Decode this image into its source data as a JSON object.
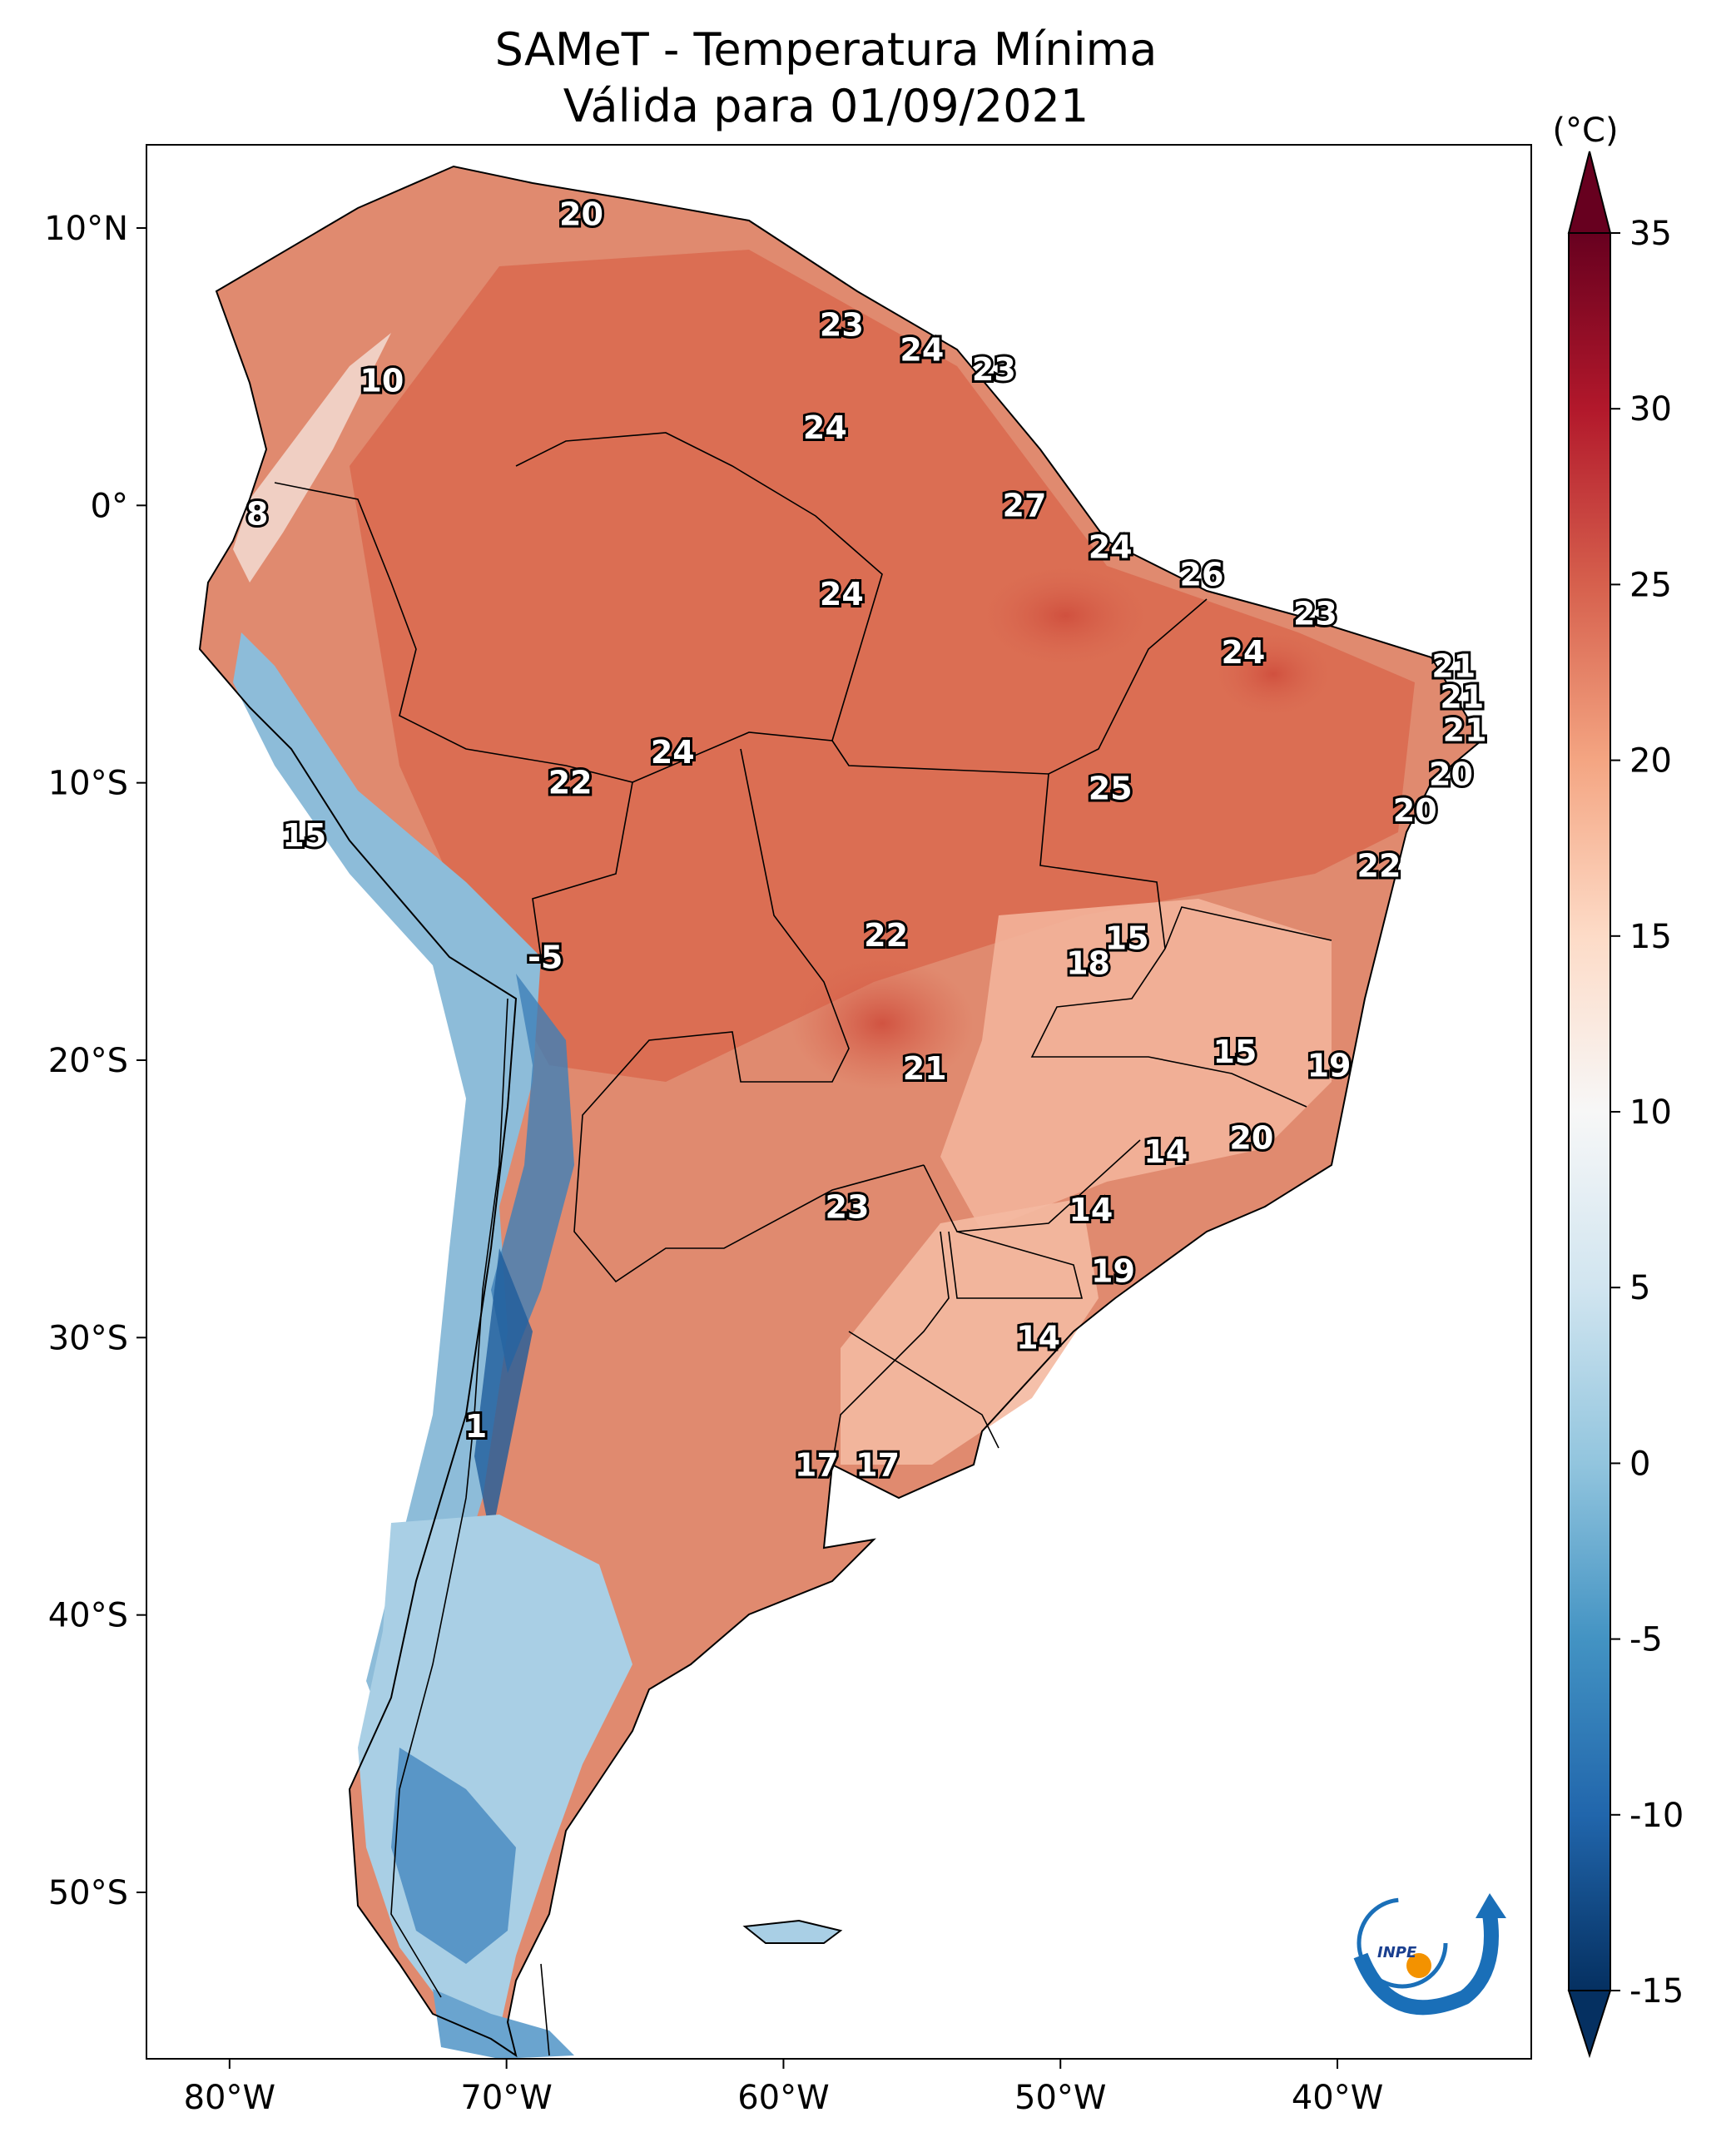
{
  "title": {
    "line1": "SAMeT - Temperatura Mínima",
    "line2": "Válida para 01/09/2021"
  },
  "map": {
    "lon_ticks": [
      "80°W",
      "70°W",
      "60°W",
      "50°W",
      "40°W"
    ],
    "lat_ticks": [
      "10°N",
      "0°",
      "10°S",
      "20°S",
      "30°S",
      "40°S",
      "50°S"
    ],
    "lon_range": [
      -83,
      -33
    ],
    "lat_range": [
      -56,
      13
    ],
    "value_labels": [
      {
        "lon": -67.3,
        "lat": 10.5,
        "text": "20"
      },
      {
        "lon": -74.5,
        "lat": 4.5,
        "text": "10"
      },
      {
        "lon": -79.0,
        "lat": -0.3,
        "text": "8"
      },
      {
        "lon": -57.9,
        "lat": 6.5,
        "text": "23"
      },
      {
        "lon": -55.0,
        "lat": 5.6,
        "text": "24"
      },
      {
        "lon": -52.4,
        "lat": 4.9,
        "text": "23"
      },
      {
        "lon": -58.5,
        "lat": 2.8,
        "text": "24"
      },
      {
        "lon": -51.3,
        "lat": 0.0,
        "text": "27"
      },
      {
        "lon": -48.2,
        "lat": -1.5,
        "text": "24"
      },
      {
        "lon": -44.9,
        "lat": -2.5,
        "text": "26"
      },
      {
        "lon": -40.8,
        "lat": -3.9,
        "text": "23"
      },
      {
        "lon": -57.9,
        "lat": -3.2,
        "text": "24"
      },
      {
        "lon": -43.4,
        "lat": -5.3,
        "text": "24"
      },
      {
        "lon": -35.8,
        "lat": -5.8,
        "text": "21"
      },
      {
        "lon": -35.5,
        "lat": -6.9,
        "text": "21"
      },
      {
        "lon": -35.4,
        "lat": -8.1,
        "text": "21"
      },
      {
        "lon": -64.0,
        "lat": -8.9,
        "text": "24"
      },
      {
        "lon": -67.7,
        "lat": -10.0,
        "text": "22"
      },
      {
        "lon": -48.2,
        "lat": -10.2,
        "text": "25"
      },
      {
        "lon": -35.9,
        "lat": -9.7,
        "text": "20"
      },
      {
        "lon": -37.2,
        "lat": -11.0,
        "text": "20"
      },
      {
        "lon": -38.5,
        "lat": -13.0,
        "text": "22"
      },
      {
        "lon": -77.3,
        "lat": -11.9,
        "text": "15"
      },
      {
        "lon": -56.3,
        "lat": -15.5,
        "text": "22"
      },
      {
        "lon": -47.6,
        "lat": -15.6,
        "text": "15"
      },
      {
        "lon": -49.0,
        "lat": -16.5,
        "text": "18"
      },
      {
        "lon": -68.6,
        "lat": -16.3,
        "text": "-5"
      },
      {
        "lon": -43.7,
        "lat": -19.7,
        "text": "15"
      },
      {
        "lon": -40.3,
        "lat": -20.2,
        "text": "19"
      },
      {
        "lon": -54.9,
        "lat": -20.3,
        "text": "21"
      },
      {
        "lon": -43.1,
        "lat": -22.8,
        "text": "20"
      },
      {
        "lon": -46.2,
        "lat": -23.3,
        "text": "14"
      },
      {
        "lon": -57.7,
        "lat": -25.3,
        "text": "23"
      },
      {
        "lon": -48.9,
        "lat": -25.4,
        "text": "14"
      },
      {
        "lon": -48.1,
        "lat": -27.6,
        "text": "19"
      },
      {
        "lon": -50.8,
        "lat": -30.0,
        "text": "14"
      },
      {
        "lon": -71.1,
        "lat": -33.2,
        "text": "1"
      },
      {
        "lon": -58.8,
        "lat": -34.6,
        "text": "17"
      },
      {
        "lon": -56.6,
        "lat": -34.6,
        "text": "17"
      }
    ]
  },
  "colorbar": {
    "unit": "(°C)",
    "ticks": [
      "35",
      "30",
      "25",
      "20",
      "15",
      "10",
      "5",
      "0",
      "-5",
      "-10",
      "-15"
    ],
    "min": -15,
    "max": 35,
    "colors": [
      "#053061",
      "#2166ac",
      "#4393c3",
      "#92c5de",
      "#d1e5f0",
      "#f7f7f7",
      "#fddbc7",
      "#f4a582",
      "#d6604d",
      "#b2182b",
      "#67001f"
    ]
  },
  "logo": {
    "text": "INPE"
  }
}
